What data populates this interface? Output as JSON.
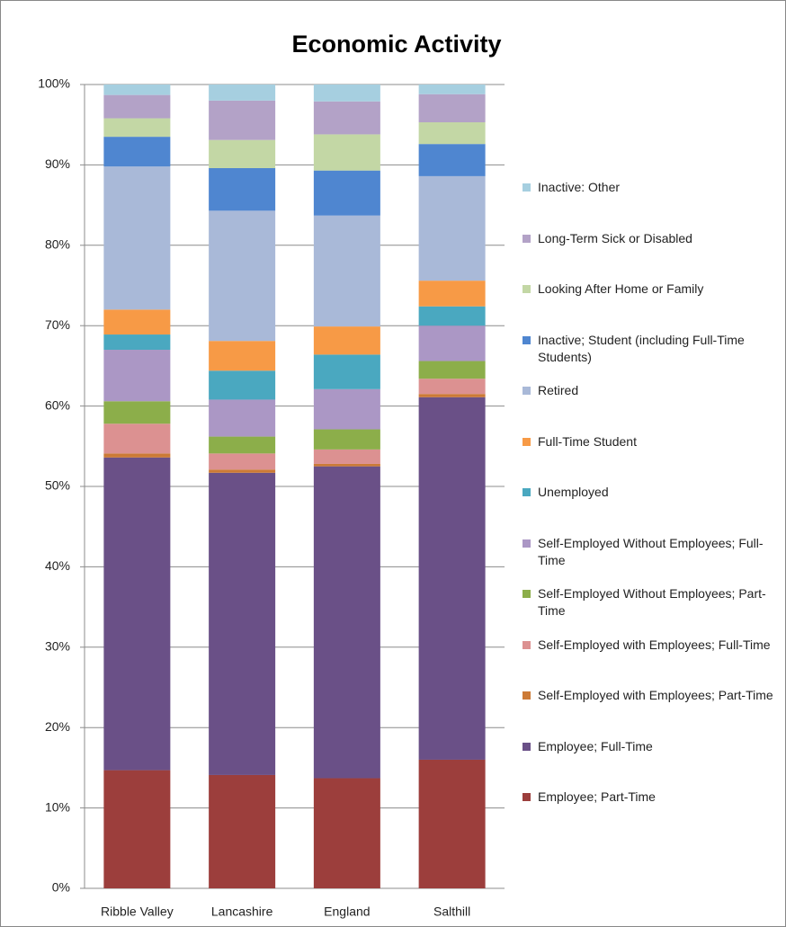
{
  "chart_data": {
    "type": "stacked-bar",
    "title": "Economic Activity",
    "categories": [
      "Ribble Valley",
      "Lancashire",
      "England",
      "Salthill"
    ],
    "ylim": [
      0,
      100
    ],
    "yticks": [
      {
        "value": 0,
        "label": "0%"
      },
      {
        "value": 10,
        "label": "10%"
      },
      {
        "value": 20,
        "label": "20%"
      },
      {
        "value": 30,
        "label": "30%"
      },
      {
        "value": 40,
        "label": "40%"
      },
      {
        "value": 50,
        "label": "50%"
      },
      {
        "value": 60,
        "label": "60%"
      },
      {
        "value": 70,
        "label": "70%"
      },
      {
        "value": 80,
        "label": "80%"
      },
      {
        "value": 90,
        "label": "90%"
      },
      {
        "value": 100,
        "label": "100%"
      }
    ],
    "grid": true,
    "legend": "right",
    "series": [
      {
        "name": "Employee; Part-Time",
        "color": "#9c3e3c",
        "values": [
          14.7,
          14.1,
          13.7,
          16.0
        ]
      },
      {
        "name": "Employee; Full-Time",
        "color": "#6a5087",
        "values": [
          38.9,
          37.6,
          38.8,
          45.1
        ]
      },
      {
        "name": "Self-Employed with Employees; Part-Time",
        "color": "#cc7a36",
        "values": [
          0.5,
          0.4,
          0.3,
          0.4
        ]
      },
      {
        "name": "Self-Employed with Employees; Full-Time",
        "color": "#dc9191",
        "values": [
          3.7,
          2.0,
          1.8,
          1.9
        ]
      },
      {
        "name": "Self-Employed Without Employees; Part-Time",
        "color": "#8cae4a",
        "values": [
          2.8,
          2.1,
          2.5,
          2.2
        ]
      },
      {
        "name": "Self-Employed Without Employees; Full-Time",
        "color": "#ab97c5",
        "values": [
          6.4,
          4.6,
          5.0,
          4.4
        ]
      },
      {
        "name": "Unemployed",
        "color": "#4aa8c0",
        "values": [
          1.9,
          3.6,
          4.3,
          2.4
        ]
      },
      {
        "name": "Full-Time Student",
        "color": "#f79a46",
        "values": [
          3.1,
          3.7,
          3.5,
          3.2
        ]
      },
      {
        "name": "Retired",
        "color": "#a9b9d8",
        "values": [
          17.8,
          16.2,
          13.8,
          13.0
        ]
      },
      {
        "name": "Inactive; Student (including Full-Time Students)",
        "color": "#4f86d0",
        "values": [
          3.7,
          5.3,
          5.6,
          4.0
        ]
      },
      {
        "name": "Looking After Home or Family",
        "color": "#c3d7a5",
        "values": [
          2.3,
          3.5,
          4.5,
          2.7
        ]
      },
      {
        "name": "Long-Term Sick or Disabled",
        "color": "#b3a2c7",
        "values": [
          2.9,
          4.9,
          4.1,
          3.5
        ]
      },
      {
        "name": "Inactive: Other",
        "color": "#a6cfe0",
        "values": [
          1.3,
          2.0,
          2.1,
          1.2
        ]
      }
    ]
  }
}
